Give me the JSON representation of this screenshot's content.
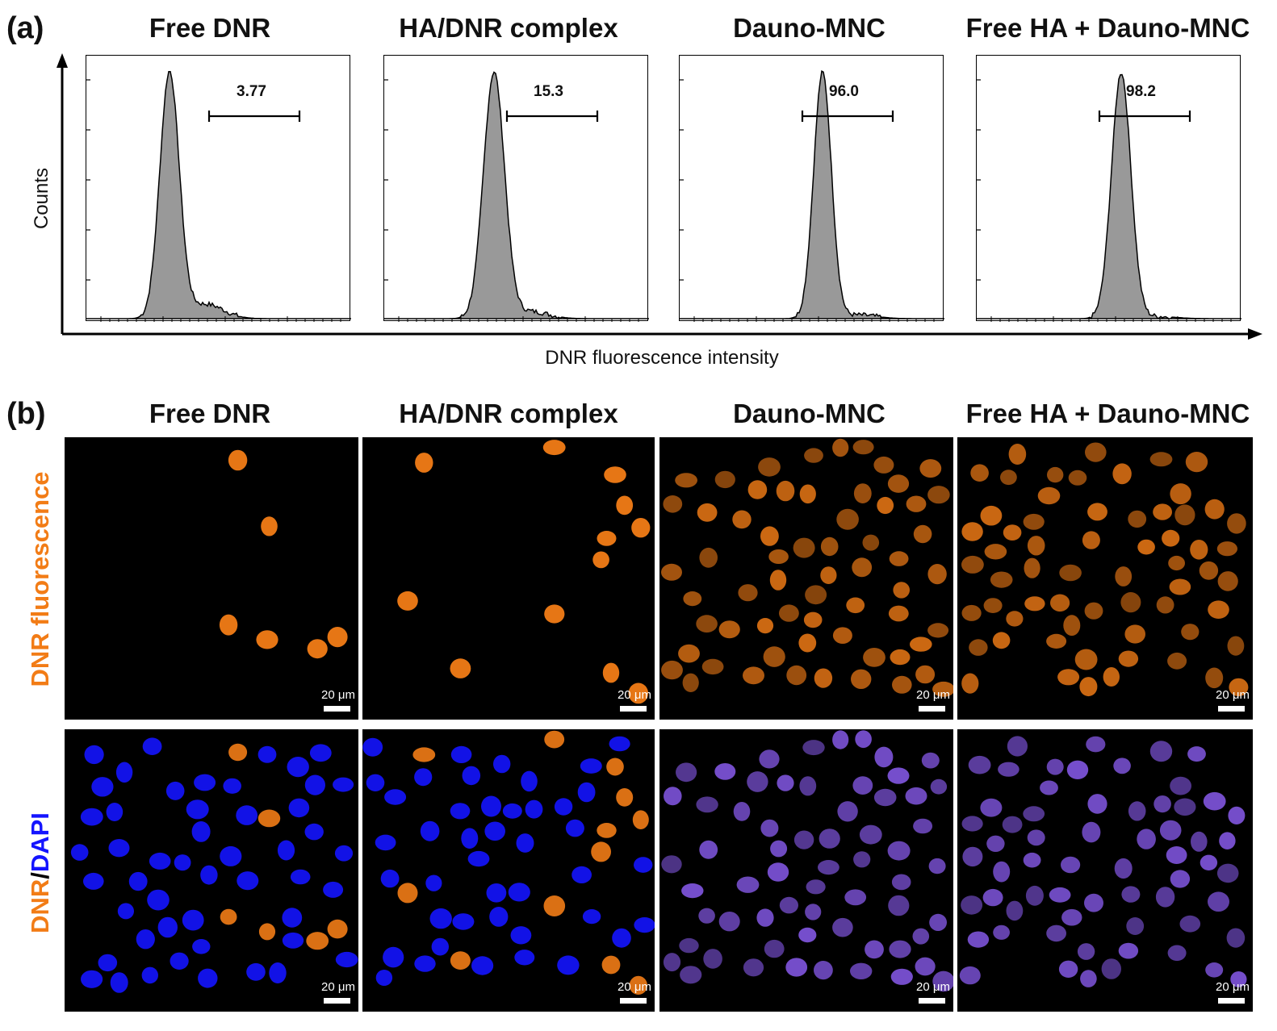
{
  "panel_a": {
    "letter": "(a)",
    "titles": [
      "Free DNR",
      "HA/DNR complex",
      "Dauno-MNC",
      "Free HA + Dauno-MNC"
    ],
    "gate_values": [
      "3.77",
      "15.3",
      "96.0",
      "98.2"
    ],
    "y_label": "Counts",
    "x_label": "DNR fluorescence intensity",
    "histogram_fill": "#999999"
  },
  "panel_b": {
    "letter": "(b)",
    "titles": [
      "Free DNR",
      "HA/DNR complex",
      "Dauno-MNC",
      "Free HA + Dauno-MNC"
    ],
    "row1_label": "DNR fluorescence",
    "row2_label_part1": "DNR",
    "row2_label_sep": "/",
    "row2_label_part2": "DAPI",
    "scale_bar_text": "20 μm",
    "colors": {
      "dnr_orange": "#f27c16",
      "dapi_blue": "#1414ff",
      "merge_purple": "#8a5cf0"
    }
  },
  "chart_data": {
    "type": "area",
    "title": "",
    "xlabel": "DNR fluorescence intensity",
    "ylabel": "Counts",
    "series": [
      {
        "name": "Free DNR",
        "gate_percent": 3.77
      },
      {
        "name": "HA/DNR complex",
        "gate_percent": 15.3
      },
      {
        "name": "Dauno-MNC",
        "gate_percent": 96.0
      },
      {
        "name": "Free HA + Dauno-MNC",
        "gate_percent": 98.2
      }
    ]
  }
}
